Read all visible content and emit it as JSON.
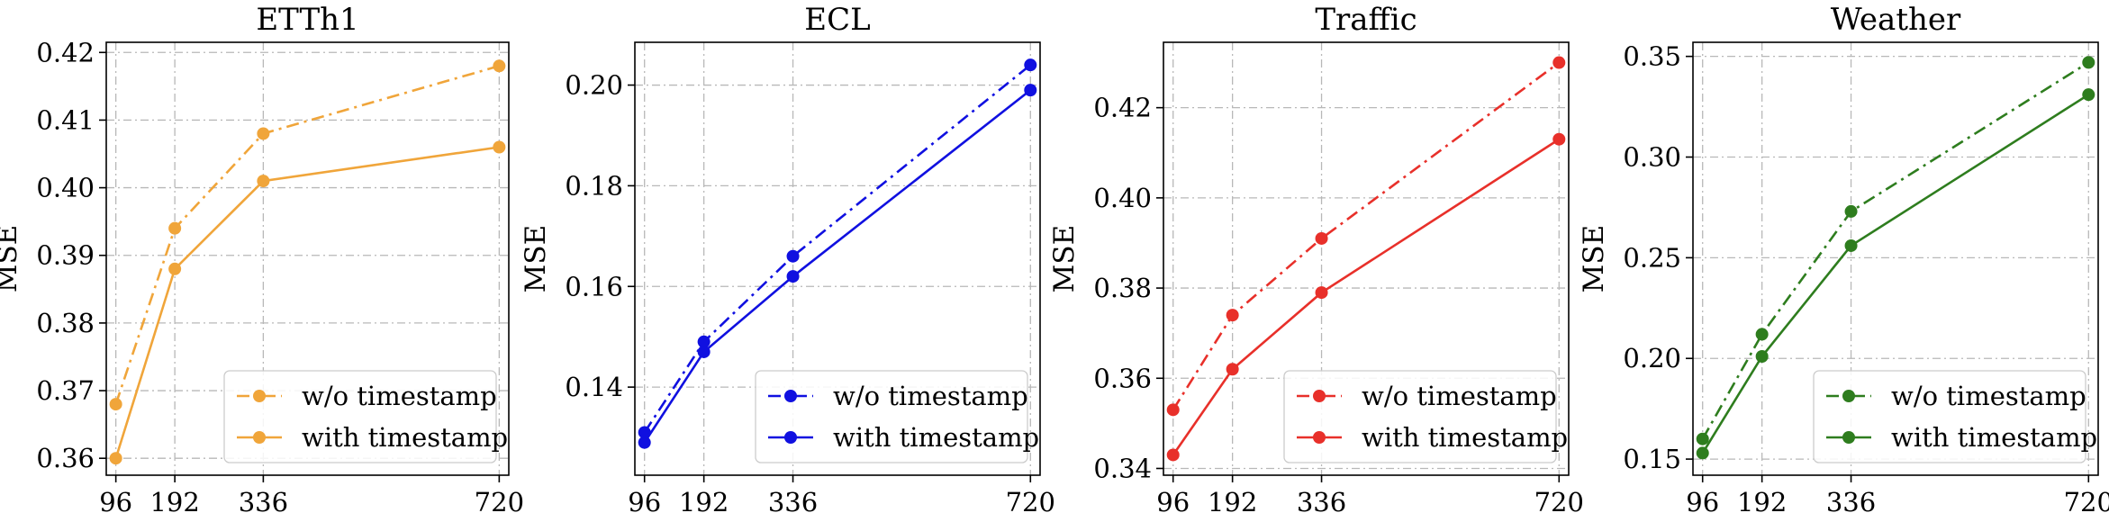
{
  "chart_data": [
    {
      "type": "line",
      "title": "ETTh1",
      "xlabel": "",
      "ylabel": "MSE",
      "color": "#f0a53a",
      "x": [
        96,
        192,
        336,
        720
      ],
      "x_ticks": [
        "96",
        "192",
        "336",
        "720"
      ],
      "ylim": [
        0.3575,
        0.4215
      ],
      "y_ticks": [
        "0.36",
        "0.37",
        "0.38",
        "0.39",
        "0.40",
        "0.41",
        "0.42"
      ],
      "legend_position": "lower-right",
      "series": [
        {
          "name": "w/o timestamp",
          "style": "dashdot",
          "values": [
            0.368,
            0.394,
            0.408,
            0.418
          ]
        },
        {
          "name": "with timestamp",
          "style": "solid",
          "values": [
            0.36,
            0.388,
            0.401,
            0.406
          ]
        }
      ]
    },
    {
      "type": "line",
      "title": "ECL",
      "xlabel": "",
      "ylabel": "MSE",
      "color": "#1010e0",
      "x": [
        96,
        192,
        336,
        720
      ],
      "x_ticks": [
        "96",
        "192",
        "336",
        "720"
      ],
      "ylim": [
        0.1225,
        0.2085
      ],
      "y_ticks": [
        "0.14",
        "0.16",
        "0.18",
        "0.20"
      ],
      "legend_position": "lower-right",
      "series": [
        {
          "name": "w/o timestamp",
          "style": "dashdot",
          "values": [
            0.131,
            0.149,
            0.166,
            0.204
          ]
        },
        {
          "name": "with timestamp",
          "style": "solid",
          "values": [
            0.129,
            0.147,
            0.162,
            0.199
          ]
        }
      ]
    },
    {
      "type": "line",
      "title": "Traffic",
      "xlabel": "",
      "ylabel": "MSE",
      "color": "#e8302a",
      "x": [
        96,
        192,
        336,
        720
      ],
      "x_ticks": [
        "96",
        "192",
        "336",
        "720"
      ],
      "ylim": [
        0.3385,
        0.4345
      ],
      "y_ticks": [
        "0.34",
        "0.36",
        "0.38",
        "0.40",
        "0.42"
      ],
      "legend_position": "lower-right",
      "series": [
        {
          "name": "w/o timestamp",
          "style": "dashdot",
          "values": [
            0.353,
            0.374,
            0.391,
            0.43
          ]
        },
        {
          "name": "with timestamp",
          "style": "solid",
          "values": [
            0.343,
            0.362,
            0.379,
            0.413
          ]
        }
      ]
    },
    {
      "type": "line",
      "title": "Weather",
      "xlabel": "",
      "ylabel": "MSE",
      "color": "#2e7d1e",
      "x": [
        96,
        192,
        336,
        720
      ],
      "x_ticks": [
        "96",
        "192",
        "336",
        "720"
      ],
      "ylim": [
        0.142,
        0.357
      ],
      "y_ticks": [
        "0.15",
        "0.20",
        "0.25",
        "0.30",
        "0.35"
      ],
      "legend_position": "lower-right",
      "series": [
        {
          "name": "w/o timestamp",
          "style": "dashdot",
          "values": [
            0.16,
            0.212,
            0.273,
            0.347
          ]
        },
        {
          "name": "with timestamp",
          "style": "solid",
          "values": [
            0.153,
            0.201,
            0.256,
            0.331
          ]
        }
      ]
    }
  ]
}
